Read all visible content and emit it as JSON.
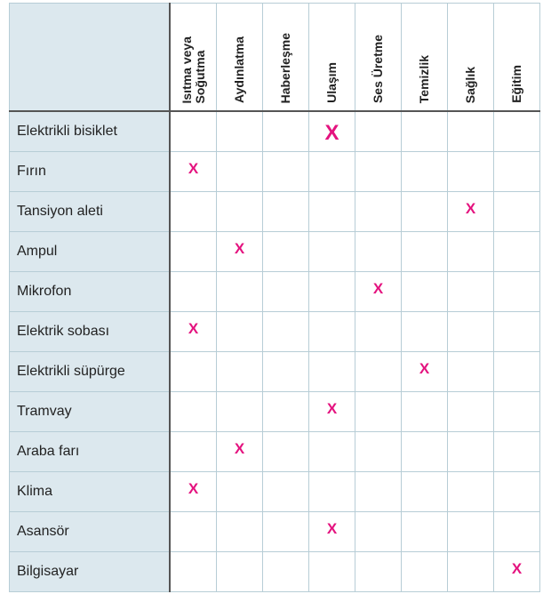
{
  "columns": [
    "Isıtma veya\nSoğutma",
    "Aydınlatma",
    "Haberleşme",
    "Ulaşım",
    "Ses Üretme",
    "Temizlik",
    "Sağlık",
    "Eğitim"
  ],
  "mark_symbol": "X",
  "mark_color": "#e4137f",
  "rows": [
    {
      "name": "Elektrikli bisiklet",
      "mark": 3
    },
    {
      "name": "Fırın",
      "mark": 0
    },
    {
      "name": "Tansiyon aleti",
      "mark": 6
    },
    {
      "name": "Ampul",
      "mark": 1
    },
    {
      "name": "Mikrofon",
      "mark": 4
    },
    {
      "name": "Elektrik sobası",
      "mark": 0
    },
    {
      "name": "Elektrikli süpürge",
      "mark": 5
    },
    {
      "name": "Tramvay",
      "mark": 3
    },
    {
      "name": "Araba farı",
      "mark": 1
    },
    {
      "name": "Klima",
      "mark": 0
    },
    {
      "name": "Asansör",
      "mark": 3
    },
    {
      "name": "Bilgisayar",
      "mark": 7
    }
  ]
}
